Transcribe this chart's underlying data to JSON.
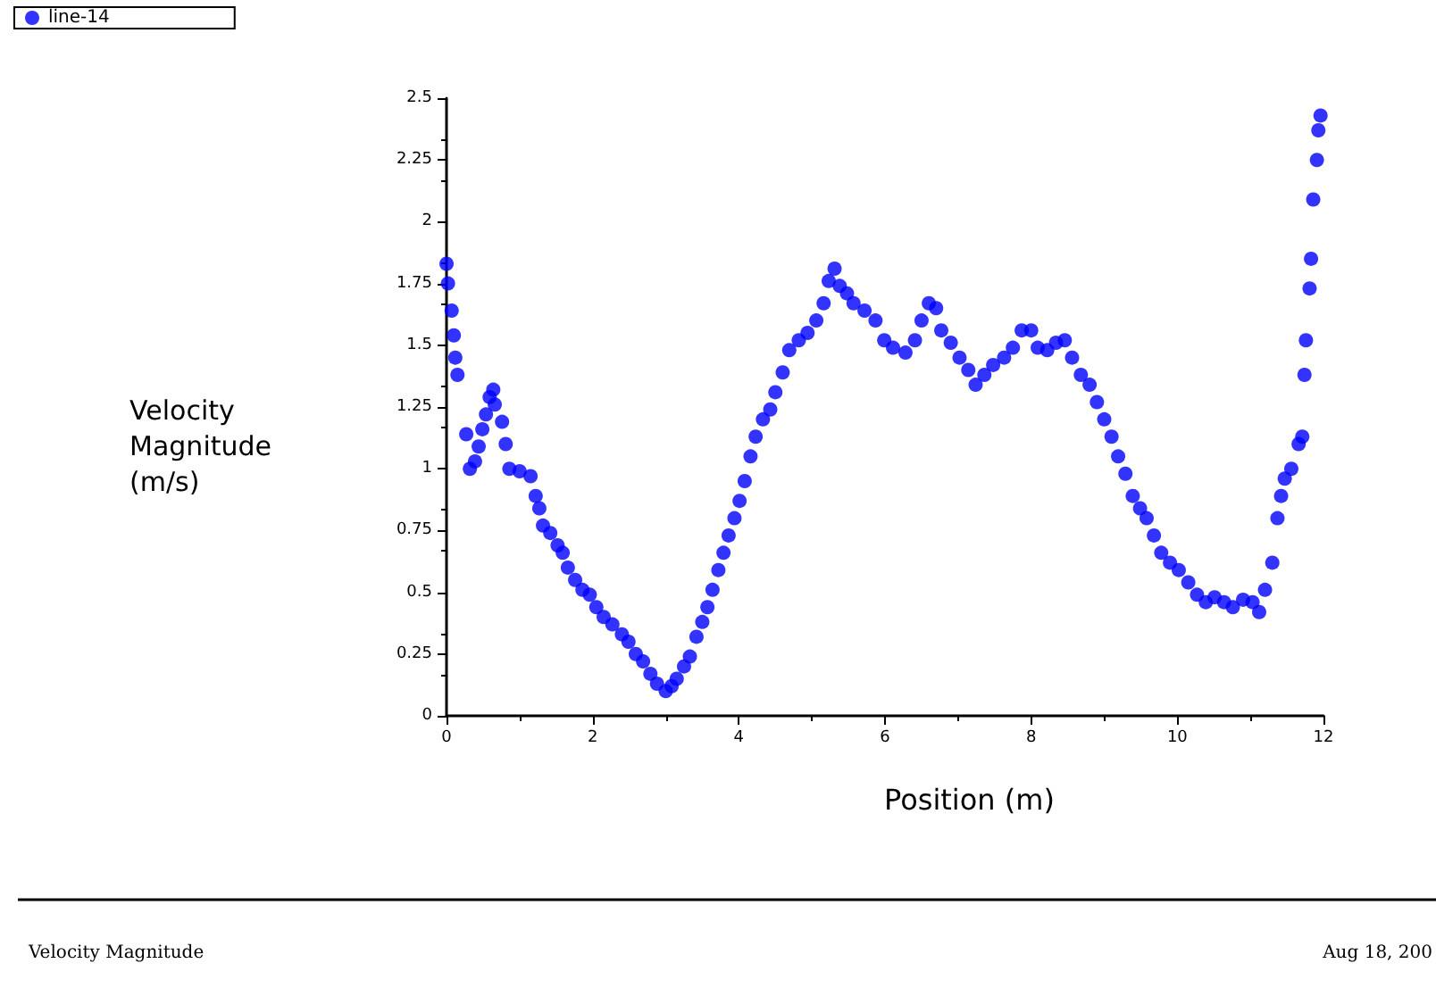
{
  "chart_data": {
    "type": "scatter",
    "xlabel": "Position (m)",
    "ylabel": "Velocity Magnitude (m/s)",
    "xlim": [
      0,
      12
    ],
    "xticks": [
      0,
      2,
      4,
      6,
      8,
      10,
      12
    ],
    "ylim": [
      0,
      2.5
    ],
    "yticks": [
      0,
      0.25,
      0.5,
      0.75,
      1,
      1.25,
      1.5,
      1.75,
      2,
      2.25,
      2.5
    ],
    "grid": false,
    "legend": "top left",
    "marker": "circle",
    "annotations": [
      "Velocity Magnitude",
      "Aug 18, 200"
    ],
    "series": [
      {
        "name": "line-14",
        "color": "#0000ff",
        "x": [
          0,
          0.02,
          0.07,
          0.1,
          0.12,
          0.15,
          0.27,
          0.32,
          0.39,
          0.44,
          0.49,
          0.54,
          0.59,
          0.64,
          0.66,
          0.76,
          0.81,
          0.86,
          1.0,
          1.15,
          1.22,
          1.27,
          1.32,
          1.42,
          1.52,
          1.59,
          1.66,
          1.76,
          1.86,
          1.96,
          2.05,
          2.15,
          2.27,
          2.4,
          2.49,
          2.59,
          2.69,
          2.79,
          2.88,
          3.0,
          3.08,
          3.15,
          3.25,
          3.33,
          3.42,
          3.5,
          3.57,
          3.64,
          3.72,
          3.79,
          3.86,
          3.94,
          4.01,
          4.08,
          4.16,
          4.23,
          4.33,
          4.43,
          4.5,
          4.6,
          4.69,
          4.82,
          4.94,
          5.06,
          5.16,
          5.23,
          5.31,
          5.38,
          5.48,
          5.57,
          5.72,
          5.87,
          5.99,
          6.11,
          6.28,
          6.41,
          6.5,
          6.6,
          6.7,
          6.77,
          6.9,
          7.02,
          7.14,
          7.24,
          7.36,
          7.48,
          7.63,
          7.75,
          7.87,
          8.0,
          8.09,
          8.22,
          8.34,
          8.46,
          8.56,
          8.68,
          8.8,
          8.9,
          9.0,
          9.1,
          9.19,
          9.29,
          9.39,
          9.49,
          9.58,
          9.68,
          9.78,
          9.9,
          10.02,
          10.15,
          10.27,
          10.39,
          10.51,
          10.64,
          10.76,
          10.9,
          11.03,
          11.12,
          11.2,
          11.3,
          11.37,
          11.42,
          11.47,
          11.56,
          11.66,
          11.71,
          11.74,
          11.76,
          11.81,
          11.83,
          11.86,
          11.91,
          11.93,
          11.96
        ],
        "values": [
          1.83,
          1.75,
          1.64,
          1.54,
          1.45,
          1.38,
          1.14,
          1.0,
          1.03,
          1.09,
          1.16,
          1.22,
          1.29,
          1.32,
          1.26,
          1.19,
          1.1,
          1.0,
          0.99,
          0.97,
          0.89,
          0.84,
          0.77,
          0.74,
          0.69,
          0.66,
          0.6,
          0.55,
          0.51,
          0.49,
          0.44,
          0.4,
          0.37,
          0.33,
          0.3,
          0.25,
          0.22,
          0.17,
          0.13,
          0.1,
          0.12,
          0.15,
          0.2,
          0.24,
          0.32,
          0.38,
          0.44,
          0.51,
          0.59,
          0.66,
          0.73,
          0.8,
          0.87,
          0.95,
          1.05,
          1.13,
          1.2,
          1.24,
          1.31,
          1.39,
          1.48,
          1.52,
          1.55,
          1.6,
          1.67,
          1.76,
          1.81,
          1.74,
          1.71,
          1.67,
          1.64,
          1.6,
          1.52,
          1.49,
          1.47,
          1.52,
          1.6,
          1.67,
          1.65,
          1.56,
          1.51,
          1.45,
          1.4,
          1.34,
          1.38,
          1.42,
          1.45,
          1.49,
          1.56,
          1.56,
          1.49,
          1.48,
          1.51,
          1.52,
          1.45,
          1.38,
          1.34,
          1.27,
          1.2,
          1.13,
          1.05,
          0.98,
          0.89,
          0.84,
          0.8,
          0.73,
          0.66,
          0.62,
          0.59,
          0.54,
          0.49,
          0.46,
          0.48,
          0.46,
          0.44,
          0.47,
          0.46,
          0.42,
          0.51,
          0.62,
          0.8,
          0.89,
          0.96,
          1.0,
          1.1,
          1.13,
          1.38,
          1.52,
          1.73,
          1.85,
          2.09,
          2.25,
          2.37,
          2.43
        ]
      }
    ]
  }
}
